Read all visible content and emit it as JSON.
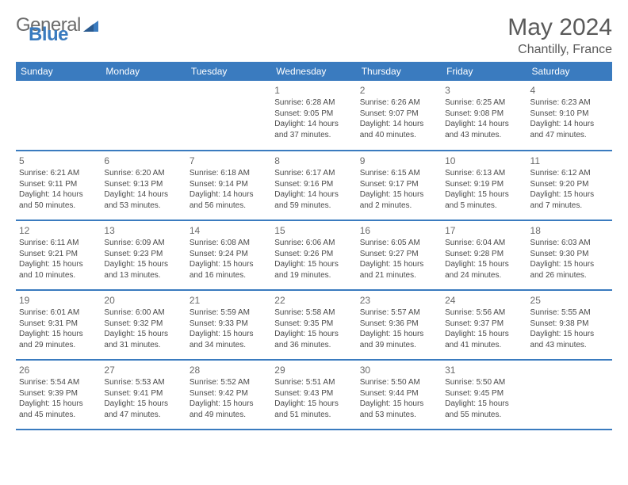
{
  "brand": {
    "text1": "General",
    "text2": "Blue"
  },
  "title": "May 2024",
  "subtitle": "Chantilly, France",
  "colors": {
    "accent": "#3a7bbf",
    "text": "#4a4a4a",
    "bg": "#ffffff"
  },
  "dayHeaders": [
    "Sunday",
    "Monday",
    "Tuesday",
    "Wednesday",
    "Thursday",
    "Friday",
    "Saturday"
  ],
  "weeks": [
    [
      null,
      null,
      null,
      {
        "n": "1",
        "sr": "6:28 AM",
        "ss": "9:05 PM",
        "dh": "14",
        "dm": "37"
      },
      {
        "n": "2",
        "sr": "6:26 AM",
        "ss": "9:07 PM",
        "dh": "14",
        "dm": "40"
      },
      {
        "n": "3",
        "sr": "6:25 AM",
        "ss": "9:08 PM",
        "dh": "14",
        "dm": "43"
      },
      {
        "n": "4",
        "sr": "6:23 AM",
        "ss": "9:10 PM",
        "dh": "14",
        "dm": "47"
      }
    ],
    [
      {
        "n": "5",
        "sr": "6:21 AM",
        "ss": "9:11 PM",
        "dh": "14",
        "dm": "50"
      },
      {
        "n": "6",
        "sr": "6:20 AM",
        "ss": "9:13 PM",
        "dh": "14",
        "dm": "53"
      },
      {
        "n": "7",
        "sr": "6:18 AM",
        "ss": "9:14 PM",
        "dh": "14",
        "dm": "56"
      },
      {
        "n": "8",
        "sr": "6:17 AM",
        "ss": "9:16 PM",
        "dh": "14",
        "dm": "59"
      },
      {
        "n": "9",
        "sr": "6:15 AM",
        "ss": "9:17 PM",
        "dh": "15",
        "dm": "2"
      },
      {
        "n": "10",
        "sr": "6:13 AM",
        "ss": "9:19 PM",
        "dh": "15",
        "dm": "5"
      },
      {
        "n": "11",
        "sr": "6:12 AM",
        "ss": "9:20 PM",
        "dh": "15",
        "dm": "7"
      }
    ],
    [
      {
        "n": "12",
        "sr": "6:11 AM",
        "ss": "9:21 PM",
        "dh": "15",
        "dm": "10"
      },
      {
        "n": "13",
        "sr": "6:09 AM",
        "ss": "9:23 PM",
        "dh": "15",
        "dm": "13"
      },
      {
        "n": "14",
        "sr": "6:08 AM",
        "ss": "9:24 PM",
        "dh": "15",
        "dm": "16"
      },
      {
        "n": "15",
        "sr": "6:06 AM",
        "ss": "9:26 PM",
        "dh": "15",
        "dm": "19"
      },
      {
        "n": "16",
        "sr": "6:05 AM",
        "ss": "9:27 PM",
        "dh": "15",
        "dm": "21"
      },
      {
        "n": "17",
        "sr": "6:04 AM",
        "ss": "9:28 PM",
        "dh": "15",
        "dm": "24"
      },
      {
        "n": "18",
        "sr": "6:03 AM",
        "ss": "9:30 PM",
        "dh": "15",
        "dm": "26"
      }
    ],
    [
      {
        "n": "19",
        "sr": "6:01 AM",
        "ss": "9:31 PM",
        "dh": "15",
        "dm": "29"
      },
      {
        "n": "20",
        "sr": "6:00 AM",
        "ss": "9:32 PM",
        "dh": "15",
        "dm": "31"
      },
      {
        "n": "21",
        "sr": "5:59 AM",
        "ss": "9:33 PM",
        "dh": "15",
        "dm": "34"
      },
      {
        "n": "22",
        "sr": "5:58 AM",
        "ss": "9:35 PM",
        "dh": "15",
        "dm": "36"
      },
      {
        "n": "23",
        "sr": "5:57 AM",
        "ss": "9:36 PM",
        "dh": "15",
        "dm": "39"
      },
      {
        "n": "24",
        "sr": "5:56 AM",
        "ss": "9:37 PM",
        "dh": "15",
        "dm": "41"
      },
      {
        "n": "25",
        "sr": "5:55 AM",
        "ss": "9:38 PM",
        "dh": "15",
        "dm": "43"
      }
    ],
    [
      {
        "n": "26",
        "sr": "5:54 AM",
        "ss": "9:39 PM",
        "dh": "15",
        "dm": "45"
      },
      {
        "n": "27",
        "sr": "5:53 AM",
        "ss": "9:41 PM",
        "dh": "15",
        "dm": "47"
      },
      {
        "n": "28",
        "sr": "5:52 AM",
        "ss": "9:42 PM",
        "dh": "15",
        "dm": "49"
      },
      {
        "n": "29",
        "sr": "5:51 AM",
        "ss": "9:43 PM",
        "dh": "15",
        "dm": "51"
      },
      {
        "n": "30",
        "sr": "5:50 AM",
        "ss": "9:44 PM",
        "dh": "15",
        "dm": "53"
      },
      {
        "n": "31",
        "sr": "5:50 AM",
        "ss": "9:45 PM",
        "dh": "15",
        "dm": "55"
      },
      null
    ]
  ],
  "labels": {
    "sunrise": "Sunrise:",
    "sunset": "Sunset:",
    "daylight": "Daylight:",
    "hours": "hours",
    "and": "and",
    "minutes": "minutes."
  }
}
